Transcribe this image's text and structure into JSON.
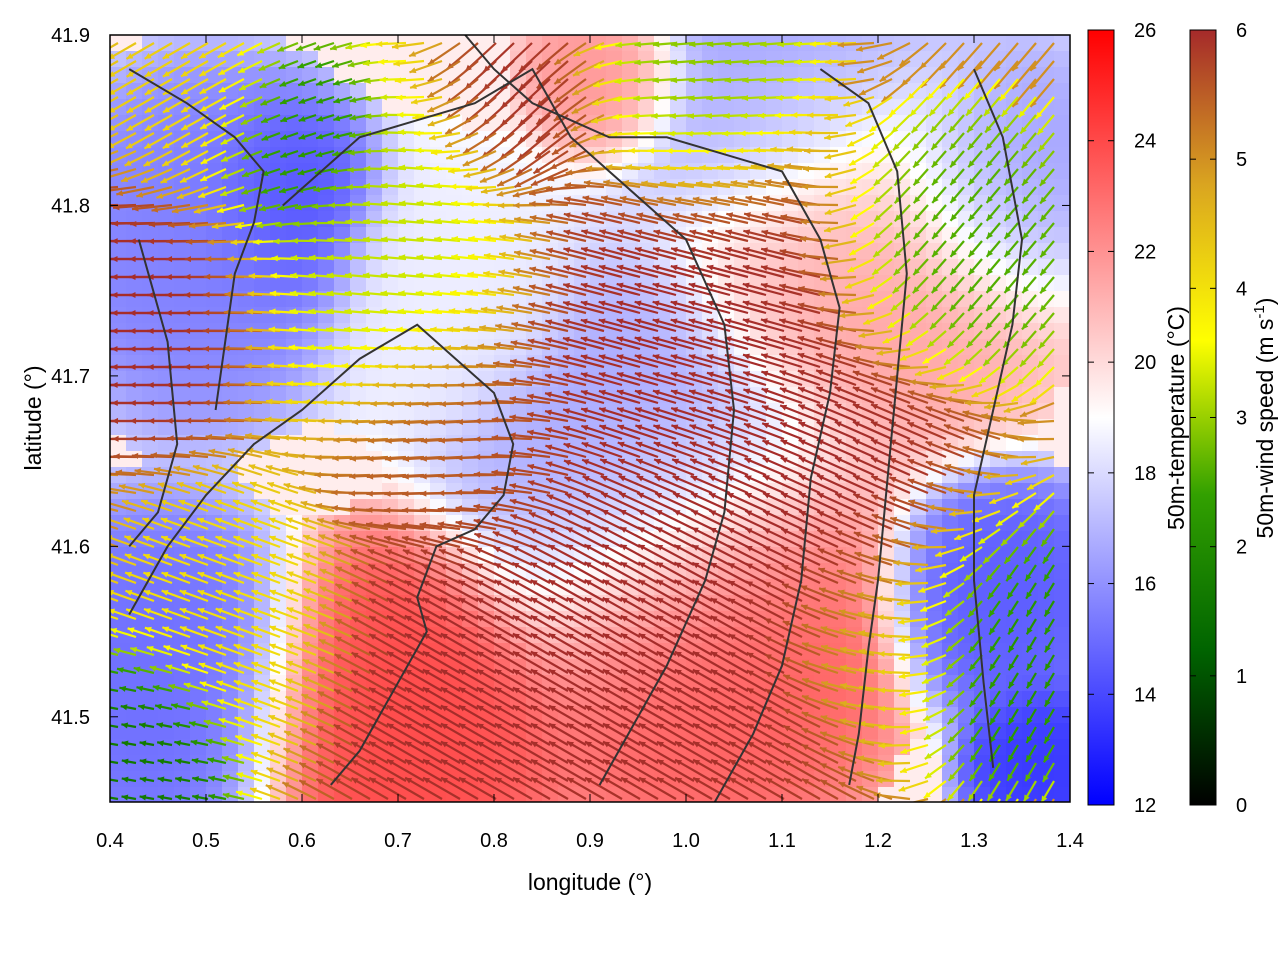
{
  "chart_data": {
    "type": "heatmap",
    "title": "",
    "xlabel": "longitude (°)",
    "ylabel": "latitude (°)",
    "xlim": [
      0.4,
      1.4
    ],
    "ylim": [
      41.45,
      41.9
    ],
    "x_ticks": [
      "0.4",
      "0.5",
      "0.6",
      "0.7",
      "0.8",
      "0.9",
      "1.0",
      "1.1",
      "1.2",
      "1.3",
      "1.4"
    ],
    "y_ticks": [
      "41.5",
      "41.6",
      "41.7",
      "41.8",
      "41.9"
    ],
    "grid": false,
    "legend": "none",
    "temperature_colorbar": {
      "label": "50m-temperature (°C)",
      "range": [
        12,
        26
      ],
      "ticks": [
        "12",
        "14",
        "16",
        "18",
        "20",
        "22",
        "24",
        "26"
      ],
      "colors": [
        "#0000ff",
        "#ffffff",
        "#ff0000"
      ]
    },
    "wind_colorbar": {
      "label": "50m-wind speed (m s",
      "label_sup": "-1",
      "label_end": ")",
      "range": [
        0,
        6
      ],
      "ticks": [
        "0",
        "1",
        "2",
        "3",
        "4",
        "5",
        "6"
      ],
      "colors": [
        "#000000",
        "#006400",
        "#32a000",
        "#ffff00",
        "#daa520",
        "#a52a2a"
      ]
    },
    "temperature_regions": [
      {
        "lon": 0.5,
        "lat": 41.78,
        "r": 0.1,
        "t": 15.5
      },
      {
        "lon": 0.58,
        "lat": 41.8,
        "r": 0.06,
        "t": 14.0
      },
      {
        "lon": 0.45,
        "lat": 41.52,
        "r": 0.1,
        "t": 15.0
      },
      {
        "lon": 0.95,
        "lat": 41.64,
        "r": 0.12,
        "t": 16.5
      },
      {
        "lon": 0.7,
        "lat": 41.5,
        "r": 0.1,
        "t": 24.0
      },
      {
        "lon": 0.92,
        "lat": 41.88,
        "r": 0.05,
        "t": 22.0
      },
      {
        "lon": 1.02,
        "lat": 41.55,
        "r": 0.12,
        "t": 23.5
      },
      {
        "lon": 1.2,
        "lat": 41.78,
        "r": 0.12,
        "t": 21.5
      },
      {
        "lon": 1.12,
        "lat": 41.88,
        "r": 0.12,
        "t": 16.5
      },
      {
        "lon": 1.33,
        "lat": 41.57,
        "r": 0.07,
        "t": 14.5
      },
      {
        "lon": 1.37,
        "lat": 41.47,
        "r": 0.05,
        "t": 13.5
      },
      {
        "lon": 0.75,
        "lat": 41.75,
        "r": 0.08,
        "t": 18.5
      },
      {
        "lon": 1.32,
        "lat": 41.82,
        "r": 0.08,
        "t": 16.0
      }
    ],
    "wind_regions": [
      {
        "lon": 0.45,
        "lat": 41.74,
        "r": 0.08,
        "s": 6.0,
        "dir": 180
      },
      {
        "lon": 0.6,
        "lat": 41.84,
        "r": 0.06,
        "s": 2.0,
        "dir": 200
      },
      {
        "lon": 0.72,
        "lat": 41.77,
        "r": 0.1,
        "s": 3.2,
        "dir": 175
      },
      {
        "lon": 0.78,
        "lat": 41.66,
        "r": 0.08,
        "s": 5.5,
        "dir": 185
      },
      {
        "lon": 0.55,
        "lat": 41.55,
        "r": 0.08,
        "s": 4.0,
        "dir": 160
      },
      {
        "lon": 0.45,
        "lat": 41.48,
        "r": 0.06,
        "s": 1.5,
        "dir": 170
      },
      {
        "lon": 0.78,
        "lat": 41.52,
        "r": 0.1,
        "s": 6.0,
        "dir": 150
      },
      {
        "lon": 1.0,
        "lat": 41.72,
        "r": 0.14,
        "s": 6.0,
        "dir": 165
      },
      {
        "lon": 0.98,
        "lat": 41.55,
        "r": 0.14,
        "s": 6.0,
        "dir": 150
      },
      {
        "lon": 1.18,
        "lat": 41.62,
        "r": 0.1,
        "s": 6.0,
        "dir": 155
      },
      {
        "lon": 1.22,
        "lat": 41.54,
        "r": 0.06,
        "s": 4.5,
        "dir": 170
      },
      {
        "lon": 1.33,
        "lat": 41.55,
        "r": 0.08,
        "s": 2.0,
        "dir": 240
      },
      {
        "lon": 1.3,
        "lat": 41.78,
        "r": 0.08,
        "s": 2.5,
        "dir": 230
      },
      {
        "lon": 1.02,
        "lat": 41.87,
        "r": 0.08,
        "s": 2.8,
        "dir": 185
      },
      {
        "lon": 0.85,
        "lat": 41.86,
        "r": 0.06,
        "s": 6.0,
        "dir": 225
      },
      {
        "lon": 0.5,
        "lat": 41.86,
        "r": 0.06,
        "s": 4.2,
        "dir": 210
      }
    ],
    "contours": [
      [
        [
          0.42,
          41.88
        ],
        [
          0.48,
          41.86
        ],
        [
          0.53,
          41.84
        ],
        [
          0.56,
          41.82
        ],
        [
          0.55,
          41.79
        ],
        [
          0.53,
          41.76
        ],
        [
          0.52,
          41.72
        ],
        [
          0.51,
          41.68
        ]
      ],
      [
        [
          0.42,
          41.56
        ],
        [
          0.46,
          41.6
        ],
        [
          0.5,
          41.63
        ],
        [
          0.55,
          41.66
        ],
        [
          0.6,
          41.68
        ],
        [
          0.66,
          41.71
        ],
        [
          0.72,
          41.73
        ],
        [
          0.76,
          41.71
        ],
        [
          0.8,
          41.69
        ],
        [
          0.82,
          41.66
        ],
        [
          0.81,
          41.63
        ],
        [
          0.78,
          41.61
        ],
        [
          0.74,
          41.6
        ],
        [
          0.72,
          41.57
        ],
        [
          0.73,
          41.55
        ],
        [
          0.7,
          41.52
        ],
        [
          0.66,
          41.48
        ],
        [
          0.63,
          41.46
        ]
      ],
      [
        [
          0.58,
          41.8
        ],
        [
          0.62,
          41.82
        ],
        [
          0.66,
          41.84
        ],
        [
          0.72,
          41.85
        ],
        [
          0.78,
          41.86
        ],
        [
          0.84,
          41.88
        ],
        [
          0.88,
          41.84
        ],
        [
          0.92,
          41.82
        ],
        [
          0.96,
          41.8
        ],
        [
          1.0,
          41.78
        ],
        [
          1.04,
          41.73
        ],
        [
          1.05,
          41.68
        ],
        [
          1.04,
          41.62
        ],
        [
          1.02,
          41.58
        ],
        [
          0.98,
          41.53
        ],
        [
          0.94,
          41.49
        ],
        [
          0.91,
          41.46
        ]
      ],
      [
        [
          0.77,
          41.9
        ],
        [
          0.8,
          41.88
        ],
        [
          0.84,
          41.86
        ],
        [
          0.88,
          41.85
        ],
        [
          0.92,
          41.84
        ],
        [
          0.98,
          41.84
        ],
        [
          1.04,
          41.83
        ],
        [
          1.1,
          41.82
        ],
        [
          1.14,
          41.78
        ],
        [
          1.16,
          41.74
        ],
        [
          1.15,
          41.69
        ],
        [
          1.13,
          41.64
        ],
        [
          1.12,
          41.58
        ],
        [
          1.1,
          41.53
        ],
        [
          1.07,
          41.49
        ],
        [
          1.03,
          41.45
        ]
      ],
      [
        [
          1.14,
          41.88
        ],
        [
          1.19,
          41.86
        ],
        [
          1.22,
          41.82
        ],
        [
          1.23,
          41.76
        ],
        [
          1.22,
          41.7
        ],
        [
          1.21,
          41.64
        ],
        [
          1.2,
          41.58
        ],
        [
          1.19,
          41.54
        ],
        [
          1.18,
          41.49
        ],
        [
          1.17,
          41.46
        ]
      ],
      [
        [
          1.3,
          41.88
        ],
        [
          1.33,
          41.84
        ],
        [
          1.35,
          41.78
        ],
        [
          1.34,
          41.73
        ],
        [
          1.32,
          41.68
        ],
        [
          1.3,
          41.63
        ],
        [
          1.3,
          41.58
        ],
        [
          1.31,
          41.52
        ],
        [
          1.32,
          41.47
        ]
      ],
      [
        [
          0.43,
          41.78
        ],
        [
          0.46,
          41.72
        ],
        [
          0.47,
          41.66
        ],
        [
          0.45,
          41.62
        ],
        [
          0.42,
          41.6
        ]
      ]
    ]
  }
}
